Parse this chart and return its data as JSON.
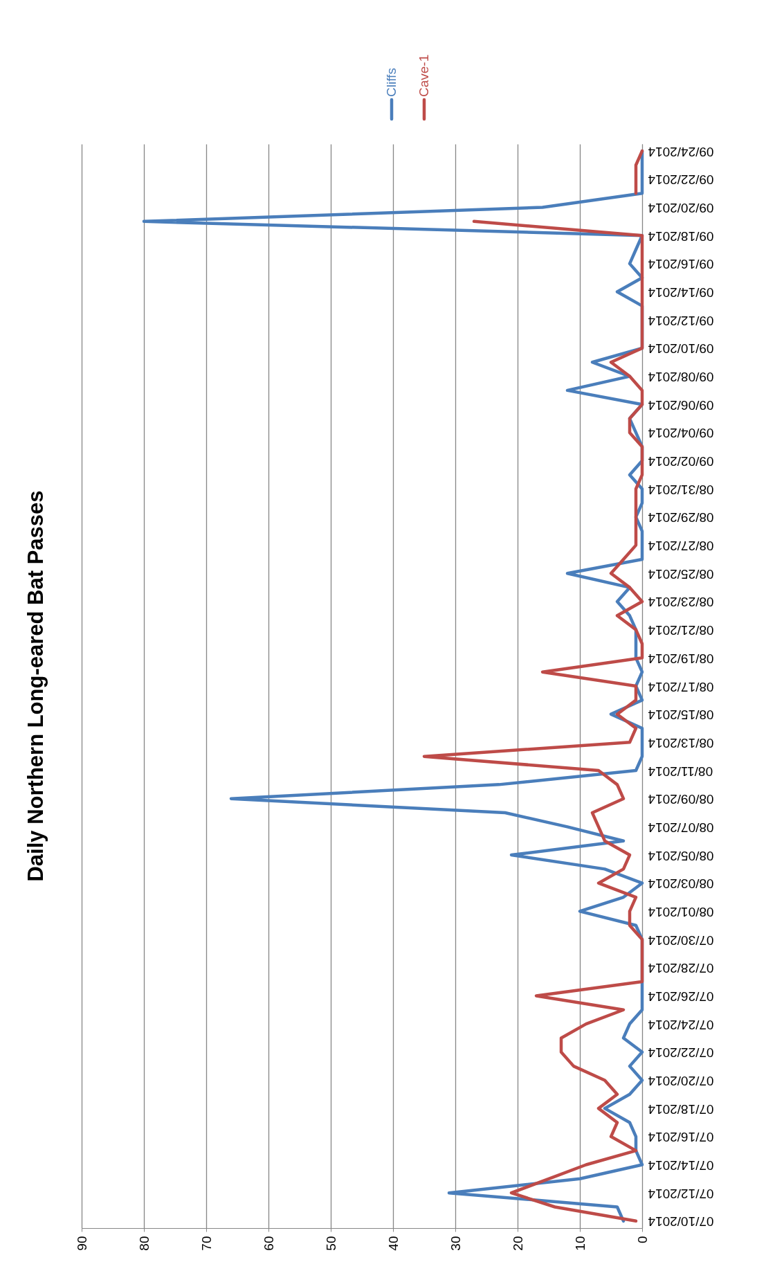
{
  "chart_data": {
    "type": "line",
    "title": "Daily Northern Long-eared Bat Passes",
    "orientation": "horizontal",
    "categories": [
      "09/24/2014",
      null,
      "09/22/2014",
      null,
      "09/20/2014",
      null,
      "09/18/2014",
      null,
      "09/16/2014",
      null,
      "09/14/2014",
      null,
      "09/12/2014",
      null,
      "09/10/2014",
      null,
      "09/08/2014",
      null,
      "09/06/2014",
      null,
      "09/04/2014",
      null,
      "09/02/2014",
      null,
      "08/31/2014",
      null,
      "08/29/2014",
      null,
      "08/27/2014",
      null,
      "08/25/2014",
      null,
      "08/23/2014",
      null,
      "08/21/2014",
      null,
      "08/19/2014",
      null,
      "08/17/2014",
      null,
      "08/15/2014",
      null,
      "08/13/2014",
      null,
      "08/11/2014",
      null,
      "08/09/2014",
      null,
      "08/07/2014",
      null,
      "08/05/2014",
      null,
      "08/03/2014",
      null,
      "08/01/2014",
      null,
      "07/30/2014",
      null,
      "07/28/2014",
      null,
      "07/26/2014",
      null,
      "07/24/2014",
      null,
      "07/22/2014",
      null,
      "07/20/2014",
      null,
      "07/18/2014",
      null,
      "07/16/2014",
      null,
      "07/14/2014",
      null,
      "07/12/2014",
      null,
      "07/10/2014"
    ],
    "series": [
      {
        "name": "Cliffs",
        "color": "#4a7ebb",
        "values": [
          0,
          0,
          0,
          0,
          16,
          80,
          0,
          1,
          2,
          0,
          4,
          0,
          0,
          0,
          0,
          8,
          2,
          12,
          0,
          2,
          1,
          0,
          0,
          2,
          0,
          0,
          1,
          0,
          0,
          0,
          12,
          2,
          4,
          2,
          1,
          1,
          1,
          0,
          1,
          0,
          5,
          0,
          0,
          0,
          1,
          23,
          66,
          22,
          12,
          3,
          21,
          6,
          0,
          3,
          10,
          1,
          0,
          0,
          0,
          0,
          0,
          0,
          2,
          3,
          0,
          2,
          0,
          2,
          6,
          2,
          1,
          1,
          0,
          10,
          31,
          4,
          3
        ]
      },
      {
        "name": "Cave-1",
        "color": "#be4b48",
        "values": [
          0,
          1,
          1,
          1,
          null,
          27,
          0,
          0,
          0,
          0,
          0,
          0,
          0,
          0,
          0,
          5,
          2,
          0,
          0,
          2,
          2,
          0,
          0,
          0,
          1,
          1,
          1,
          1,
          1,
          3,
          5,
          2,
          0,
          4,
          1,
          0,
          0,
          16,
          1,
          1,
          4,
          1,
          2,
          35,
          7,
          4,
          3,
          8,
          7,
          6,
          2,
          3,
          7,
          1,
          2,
          2,
          0,
          0,
          0,
          0,
          17,
          3,
          9,
          13,
          13,
          11,
          6,
          4,
          7,
          4,
          5,
          1,
          9,
          15,
          21,
          14,
          1
        ]
      }
    ],
    "xlim": [
      90,
      0
    ],
    "xticks": [
      0,
      10,
      20,
      30,
      40,
      50,
      60,
      70,
      80,
      90
    ],
    "grid": "x",
    "legend": "top",
    "marker": "none",
    "line_style": "solid"
  }
}
